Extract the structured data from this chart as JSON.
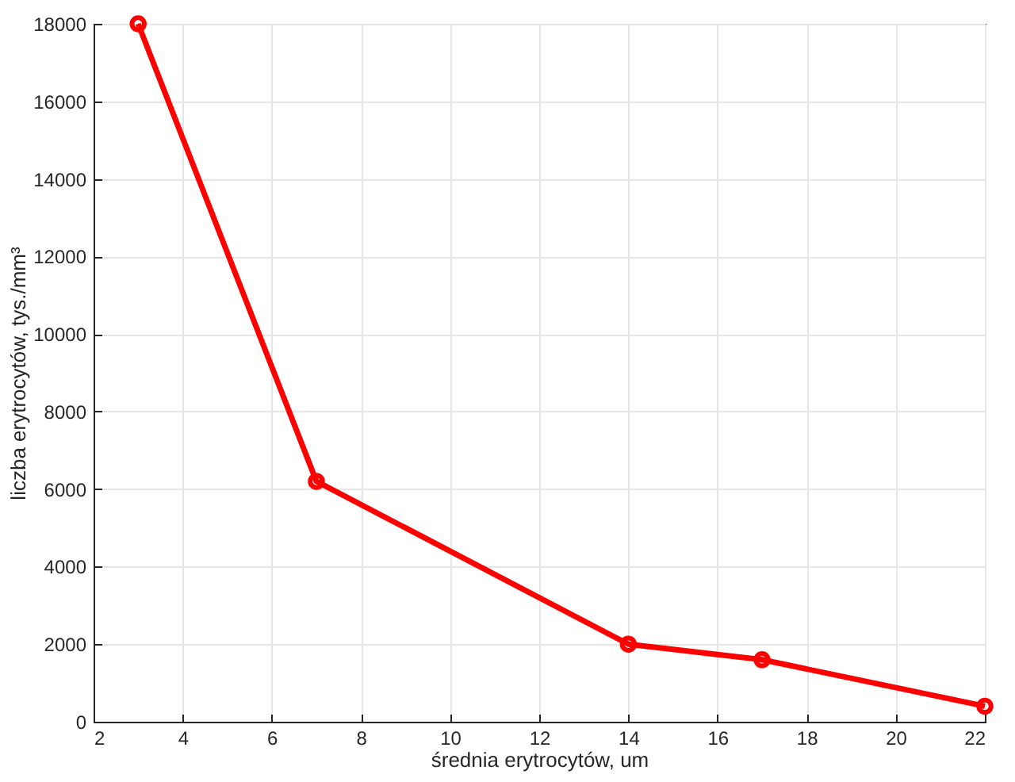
{
  "chart_data": {
    "type": "line",
    "xlabel": "średnia erytrocytów, um",
    "ylabel": "liczba erytrocytów, tys./mm³",
    "x": [
      3,
      7,
      14,
      17,
      22
    ],
    "series": [
      {
        "color": "#ff0000",
        "values": [
          18000,
          6200,
          2000,
          1600,
          400
        ]
      }
    ],
    "xlim": [
      2,
      22
    ],
    "xticks": [
      2,
      4,
      6,
      8,
      10,
      12,
      14,
      16,
      18,
      20,
      22
    ],
    "ylim": [
      0,
      18000
    ],
    "yticks": [
      0,
      2000,
      4000,
      6000,
      8000,
      10000,
      12000,
      14000,
      16000,
      18000
    ],
    "grid": true,
    "marker": "circle",
    "line_style": "solid"
  }
}
